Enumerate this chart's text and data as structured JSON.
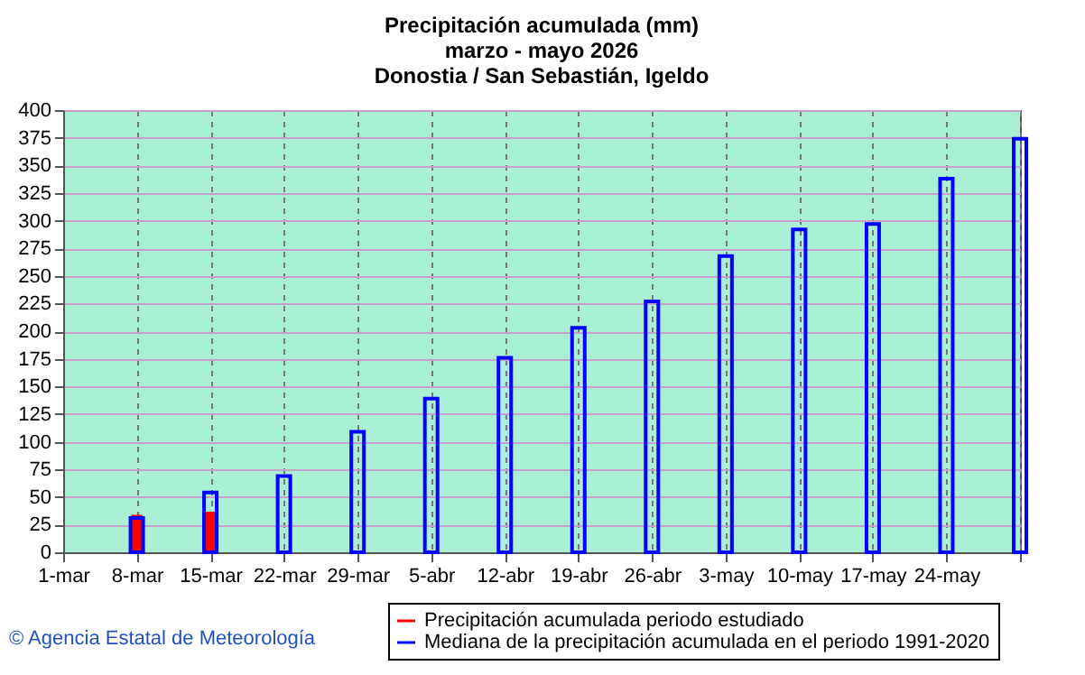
{
  "chart_data": {
    "type": "bar",
    "title": [
      "Precipitación acumulada (mm)",
      "marzo - mayo 2026",
      "Donostia / San Sebastián, Igeldo"
    ],
    "categories": [
      "1-mar",
      "8-mar",
      "15-mar",
      "22-mar",
      "29-mar",
      "5-abr",
      "12-abr",
      "19-abr",
      "26-abr",
      "3-may",
      "10-may",
      "17-may",
      "24-may",
      null
    ],
    "series": [
      {
        "name": "Precipitación acumulada periodo estudiado",
        "color": "#ff0000",
        "values": [
          null,
          33,
          36,
          null,
          null,
          null,
          null,
          null,
          null,
          null,
          null,
          null,
          null,
          null
        ]
      },
      {
        "name": "Mediana de la precipitación acumulada en el periodo 1991-2020",
        "color": "#0000ff",
        "values": [
          null,
          31,
          54,
          69,
          109,
          139,
          176,
          203,
          227,
          268,
          292,
          297,
          338,
          374
        ]
      }
    ],
    "ylim": [
      0,
      400
    ],
    "yticks": [
      0,
      25,
      50,
      75,
      100,
      125,
      150,
      175,
      200,
      225,
      250,
      275,
      300,
      325,
      350,
      375,
      400
    ],
    "grid": true,
    "legend": "bottom",
    "annotations": [
      "© Agencia Estatal de Meteorología"
    ]
  }
}
